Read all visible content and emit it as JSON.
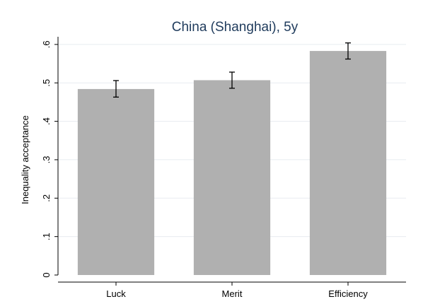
{
  "chart_data": {
    "type": "bar",
    "title": "China (Shanghai), 5y",
    "xlabel": "",
    "ylabel": "Inequality acceptance",
    "categories": [
      "Luck",
      "Merit",
      "Efficiency"
    ],
    "values": [
      0.484,
      0.507,
      0.583
    ],
    "error_low": [
      0.463,
      0.486,
      0.562
    ],
    "error_high": [
      0.506,
      0.528,
      0.604
    ],
    "ylim": [
      0,
      0.62
    ],
    "yticks": [
      0,
      0.1,
      0.2,
      0.3,
      0.4,
      0.5,
      0.6
    ],
    "ytick_labels": [
      "0",
      ".1",
      ".2",
      ".3",
      ".4",
      ".5",
      ".6"
    ],
    "grid": true,
    "colors": {
      "bar": "#b0b0b0",
      "error": "#000000",
      "grid": "#e8ecf0",
      "title": "#1f3b5c"
    }
  }
}
